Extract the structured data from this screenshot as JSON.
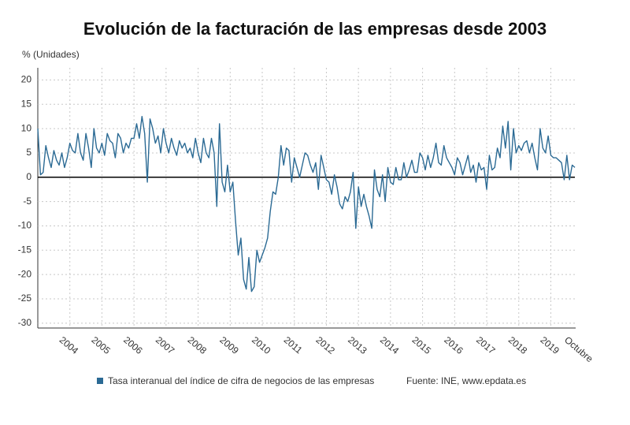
{
  "chart_data": {
    "type": "line",
    "title": "Evolución de la facturación de las empresas desde 2003",
    "y_label": "% (Unidades)",
    "source": "Fuente: INE, www.epdata.es",
    "categories": [
      null,
      null,
      null,
      null,
      null,
      null,
      null,
      null,
      null,
      null,
      null,
      null,
      "2004",
      null,
      null,
      null,
      null,
      null,
      null,
      null,
      null,
      null,
      null,
      null,
      "2005",
      null,
      null,
      null,
      null,
      null,
      null,
      null,
      null,
      null,
      null,
      null,
      "2006",
      null,
      null,
      null,
      null,
      null,
      null,
      null,
      null,
      null,
      null,
      null,
      "2007",
      null,
      null,
      null,
      null,
      null,
      null,
      null,
      null,
      null,
      null,
      null,
      "2008",
      null,
      null,
      null,
      null,
      null,
      null,
      null,
      null,
      null,
      null,
      null,
      "2009",
      null,
      null,
      null,
      null,
      null,
      null,
      null,
      null,
      null,
      null,
      null,
      "2010",
      null,
      null,
      null,
      null,
      null,
      null,
      null,
      null,
      null,
      null,
      null,
      "2011",
      null,
      null,
      null,
      null,
      null,
      null,
      null,
      null,
      null,
      null,
      null,
      "2012",
      null,
      null,
      null,
      null,
      null,
      null,
      null,
      null,
      null,
      null,
      null,
      "2013",
      null,
      null,
      null,
      null,
      null,
      null,
      null,
      null,
      null,
      null,
      null,
      "2014",
      null,
      null,
      null,
      null,
      null,
      null,
      null,
      null,
      null,
      null,
      null,
      "2015",
      null,
      null,
      null,
      null,
      null,
      null,
      null,
      null,
      null,
      null,
      null,
      "2016",
      null,
      null,
      null,
      null,
      null,
      null,
      null,
      null,
      null,
      null,
      null,
      "2017",
      null,
      null,
      null,
      null,
      null,
      null,
      null,
      null,
      null,
      null,
      null,
      "2018",
      null,
      null,
      null,
      null,
      null,
      null,
      null,
      null,
      null,
      null,
      null,
      "2019",
      null,
      null,
      null,
      null,
      null,
      null,
      null,
      null,
      "Octubre"
    ],
    "series": [
      {
        "name": "Tasa interanual del índice de cifra de negocios de las empresas",
        "color": "#2b6a94",
        "values": [
          10,
          0.5,
          1,
          6.5,
          4,
          2,
          5.5,
          3.5,
          2.5,
          5,
          2,
          4,
          7,
          5.5,
          5,
          9,
          5,
          3.5,
          9,
          6,
          2,
          10,
          6,
          5,
          7,
          4.5,
          9,
          7.5,
          7,
          4,
          9,
          8,
          5,
          7,
          6,
          8,
          8,
          11,
          8,
          12.5,
          9,
          -1,
          12,
          10,
          7,
          8.5,
          5,
          10,
          7,
          5,
          8,
          6,
          4.5,
          7.5,
          6,
          7,
          5,
          6,
          4,
          8,
          5,
          3,
          8,
          5,
          4,
          8,
          5,
          -6,
          11,
          -1,
          -3,
          2.5,
          -3,
          -1,
          -9,
          -16,
          -12.5,
          -21,
          -23,
          -16.5,
          -23.5,
          -22.5,
          -15,
          -17.5,
          -16,
          -14.5,
          -12.5,
          -7,
          -3,
          -3.5,
          0,
          6.5,
          2.5,
          6,
          5.5,
          -1,
          4,
          2,
          0,
          2.5,
          5,
          4.5,
          2.5,
          1,
          3,
          -2.5,
          4.5,
          2,
          -0.5,
          -1,
          -3.5,
          0.5,
          -2,
          -5.5,
          -6.5,
          -4,
          -5,
          -3,
          1,
          -10.5,
          -2,
          -6,
          -3.5,
          -6,
          -8,
          -10.5,
          1.5,
          -2.5,
          -4,
          0.5,
          -5,
          2,
          -1,
          -1.5,
          2,
          -0.5,
          -0.5,
          3,
          0,
          1.5,
          3.5,
          1,
          1,
          5,
          4,
          1.5,
          4.5,
          2,
          4,
          7,
          3,
          2.5,
          6.5,
          4,
          3,
          2,
          0.5,
          4,
          3,
          0.5,
          2.5,
          4.5,
          1,
          2.5,
          -1,
          3,
          1.5,
          2,
          -2.5,
          4.5,
          1.5,
          2,
          6,
          4,
          10.5,
          6,
          11.5,
          1.5,
          10,
          5,
          6.5,
          5.5,
          7,
          7.5,
          5,
          7,
          4,
          1.5,
          10,
          6,
          5,
          8.5,
          4.5,
          4,
          4,
          3.5,
          3,
          -0.5,
          4.5,
          -0.5,
          2.5,
          2
        ]
      }
    ],
    "ylim": [
      -31,
      22.5
    ],
    "yticks": [
      20,
      15,
      10,
      5,
      0,
      -5,
      -10,
      -15,
      -20,
      -25,
      -30
    ],
    "grid": true
  }
}
